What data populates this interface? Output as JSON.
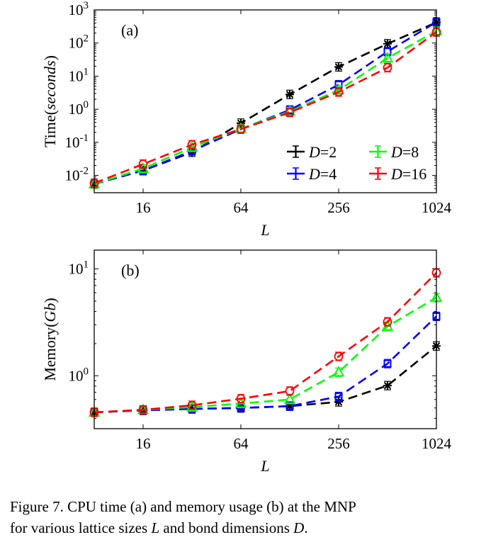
{
  "chart_data": [
    {
      "type": "line",
      "panel_label": "(a)",
      "xlabel": "L",
      "ylabel_prefix": "Time(",
      "ylabel_var": "seconds",
      "ylabel_suffix": ")",
      "x_scale": "log2",
      "y_scale": "log10",
      "xlim": [
        8,
        1024
      ],
      "ylim": [
        0.003,
        1000
      ],
      "xticks": [
        16,
        64,
        256,
        1024
      ],
      "xtick_labels": [
        "16",
        "64",
        "256",
        "1024"
      ],
      "yticks": [
        0.01,
        0.1,
        1,
        10,
        100,
        1000
      ],
      "ytick_labels": [
        [
          "10",
          "-2"
        ],
        [
          "10",
          "-1"
        ],
        [
          "10",
          "0"
        ],
        [
          "10",
          "1"
        ],
        [
          "10",
          "2"
        ],
        [
          "10",
          "3"
        ]
      ],
      "legend": {
        "position": "bottom-right",
        "columns": 2
      },
      "x": [
        8,
        16,
        32,
        64,
        128,
        256,
        512,
        1024
      ],
      "series": [
        {
          "name": "D=2",
          "legend_var": "D",
          "legend_val": "=2",
          "color": "#000000",
          "marker": "star",
          "values": [
            0.0055,
            0.014,
            0.05,
            0.38,
            2.8,
            19,
            95,
            420
          ]
        },
        {
          "name": "D=4",
          "legend_var": "D",
          "legend_val": "=4",
          "color": "#0000ff",
          "marker": "square",
          "values": [
            0.0055,
            0.014,
            0.055,
            0.25,
            0.95,
            5.5,
            55,
            430
          ]
        },
        {
          "name": "D=8",
          "legend_var": "D",
          "legend_val": "=8",
          "color": "#00ff00",
          "marker": "triangle",
          "values": [
            0.0055,
            0.016,
            0.07,
            0.26,
            0.85,
            3.8,
            35,
            230
          ]
        },
        {
          "name": "D=16",
          "legend_var": "D",
          "legend_val": "=16",
          "color": "#ff0000",
          "marker": "circle",
          "values": [
            0.0058,
            0.022,
            0.085,
            0.25,
            0.8,
            3.3,
            18,
            215
          ]
        }
      ]
    },
    {
      "type": "line",
      "panel_label": "(b)",
      "xlabel": "L",
      "ylabel_prefix": "Memory(",
      "ylabel_var": "Gb",
      "ylabel_suffix": ")",
      "x_scale": "log2",
      "y_scale": "log10",
      "xlim": [
        8,
        1024
      ],
      "ylim": [
        0.32,
        15
      ],
      "xticks": [
        16,
        64,
        256,
        1024
      ],
      "xtick_labels": [
        "16",
        "64",
        "256",
        "1024"
      ],
      "yticks": [
        1,
        10
      ],
      "ytick_labels": [
        [
          "10",
          "0"
        ],
        [
          "10",
          "1"
        ]
      ],
      "x": [
        8,
        16,
        32,
        64,
        128,
        256,
        512,
        1024
      ],
      "series": [
        {
          "name": "D=2",
          "color": "#000000",
          "marker": "star",
          "values": [
            0.455,
            0.475,
            0.49,
            0.5,
            0.52,
            0.57,
            0.81,
            1.9
          ]
        },
        {
          "name": "D=4",
          "color": "#0000ff",
          "marker": "square",
          "values": [
            0.455,
            0.475,
            0.49,
            0.5,
            0.52,
            0.64,
            1.3,
            3.6
          ]
        },
        {
          "name": "D=8",
          "color": "#00ff00",
          "marker": "triangle",
          "values": [
            0.455,
            0.48,
            0.51,
            0.55,
            0.6,
            1.08,
            2.9,
            5.4
          ]
        },
        {
          "name": "D=16",
          "color": "#ff0000",
          "marker": "circle",
          "values": [
            0.455,
            0.48,
            0.53,
            0.61,
            0.72,
            1.52,
            3.2,
            9.2
          ]
        }
      ]
    }
  ],
  "caption": {
    "line1_prefix": "Figure 7.   CPU time (a) and memory usage (b) at the MNP",
    "line2_prefix": "for various lattice sizes ",
    "line2_var1": "L",
    "line2_mid": " and bond dimensions ",
    "line2_var2": "D",
    "line2_end": "."
  }
}
